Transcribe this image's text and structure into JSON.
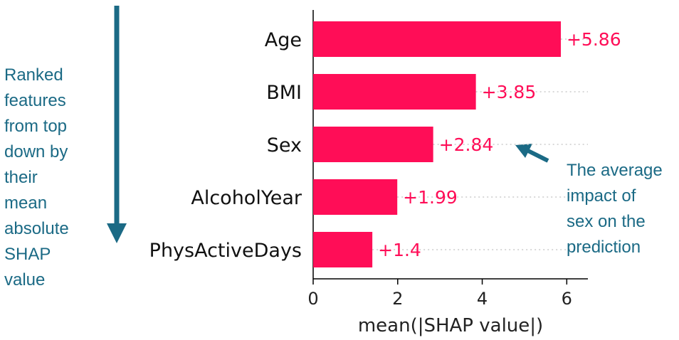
{
  "chart_data": {
    "type": "bar",
    "orientation": "horizontal",
    "categories": [
      "Age",
      "BMI",
      "Sex",
      "AlcoholYear",
      "PhysActiveDays"
    ],
    "values": [
      5.86,
      3.85,
      2.84,
      1.99,
      1.4
    ],
    "value_labels": [
      "+5.86",
      "+3.85",
      "+2.84",
      "+1.99",
      "+1.4"
    ],
    "xlabel": "mean(|SHAP value|)",
    "xlim": [
      0,
      6.5
    ],
    "xticks": [
      "0",
      "2",
      "4",
      "6"
    ],
    "bar_color": "#ff0d57",
    "label_color": "#ff0d57",
    "grid": false
  },
  "annotations": {
    "left_text": "Ranked\nfeatures\nfrom top\ndown by\ntheir\nmean\nabsolute\nSHAP\nvalue",
    "right_text": "The average\nimpact of\nsex on the\nprediction",
    "accent_color": "#1b6a85",
    "arrows": [
      "down-arrow-icon",
      "pointer-arrow-icon"
    ]
  }
}
